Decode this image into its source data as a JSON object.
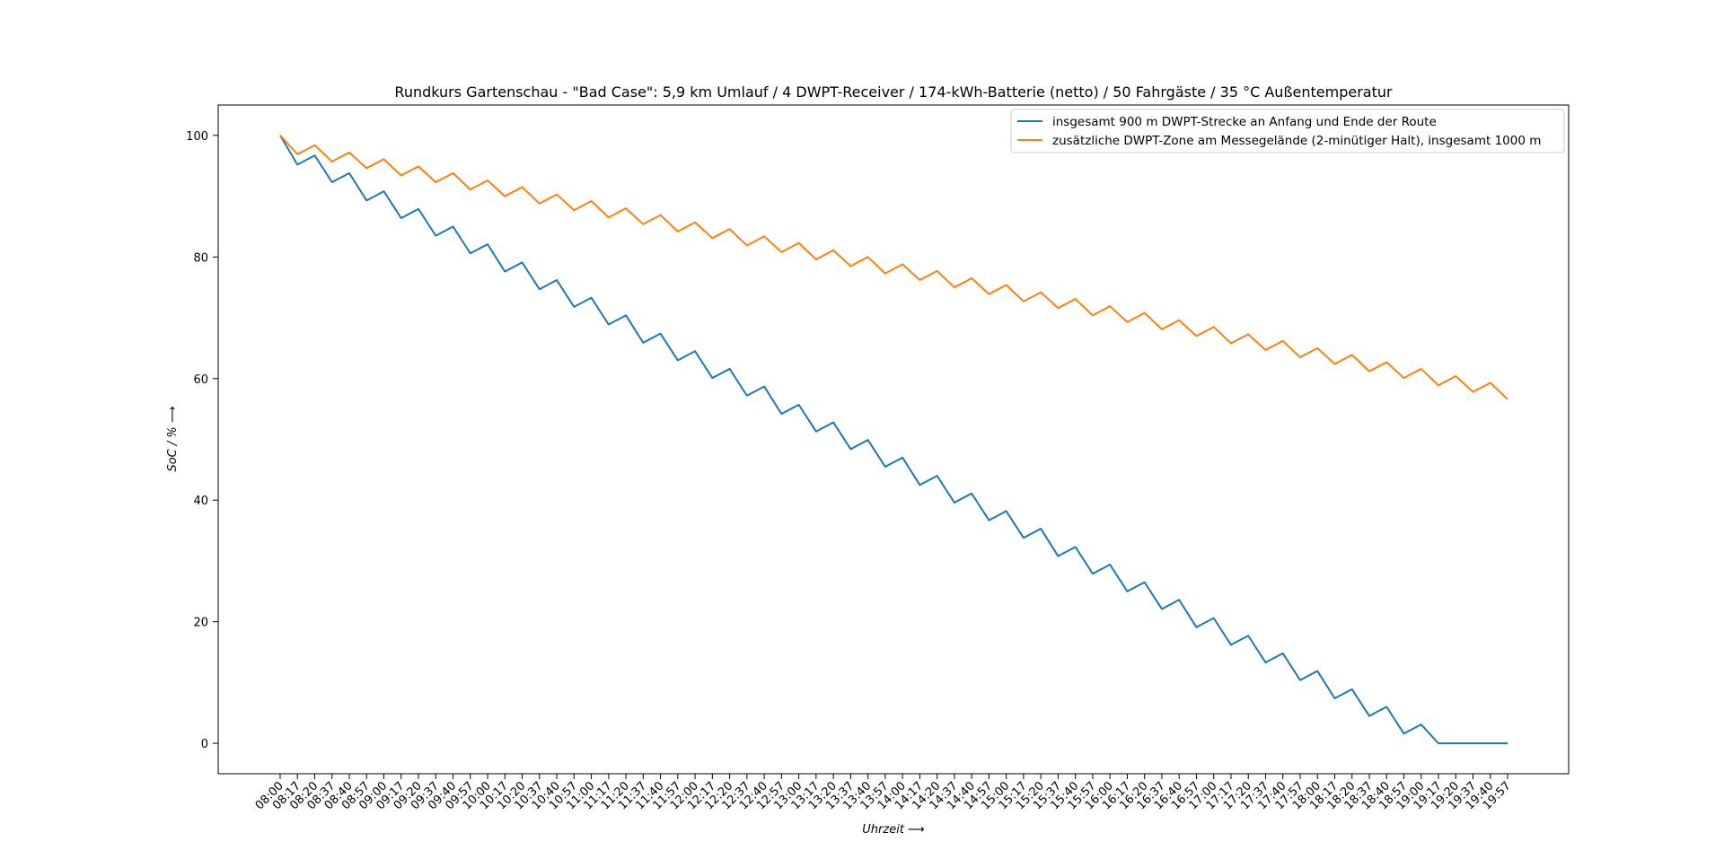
{
  "chart_data": {
    "type": "line",
    "title": "Rundkurs Gartenschau - \"Bad Case\": 5,9 km Umlauf / 4 DWPT-Receiver / 174-kWh-Batterie (netto) / 50 Fahrgäste / 35 °C Außentemperatur",
    "xlabel": "Uhrzeit ⟶",
    "ylabel": "SoC / % ⟶",
    "ylim": [
      -5,
      105
    ],
    "yticks": [
      0,
      20,
      40,
      60,
      80,
      100
    ],
    "grid": false,
    "legend_position": "top-right",
    "x": [
      "08:00",
      "08:17",
      "08:20",
      "08:37",
      "08:40",
      "08:57",
      "09:00",
      "09:17",
      "09:20",
      "09:37",
      "09:40",
      "09:57",
      "10:00",
      "10:17",
      "10:20",
      "10:37",
      "10:40",
      "10:57",
      "11:00",
      "11:17",
      "11:20",
      "11:37",
      "11:40",
      "11:57",
      "12:00",
      "12:17",
      "12:20",
      "12:37",
      "12:40",
      "12:57",
      "13:00",
      "13:17",
      "13:20",
      "13:37",
      "13:40",
      "13:57",
      "14:00",
      "14:17",
      "14:20",
      "14:37",
      "14:40",
      "14:57",
      "15:00",
      "15:17",
      "15:20",
      "15:37",
      "15:40",
      "15:57",
      "16:00",
      "16:17",
      "16:20",
      "16:37",
      "16:40",
      "16:57",
      "17:00",
      "17:17",
      "17:20",
      "17:37",
      "17:40",
      "17:57",
      "18:00",
      "18:17",
      "18:20",
      "18:37",
      "18:40",
      "18:57",
      "19:00",
      "19:17",
      "19:20",
      "19:37",
      "19:40",
      "19:57"
    ],
    "series": [
      {
        "name": "insgesamt 900 m DWPT-Strecke an Anfang und Ende der Route",
        "color": "#1f77b4",
        "values": [
          100.0,
          95.2,
          96.7,
          92.3,
          93.8,
          89.3,
          90.8,
          86.4,
          87.9,
          83.5,
          85.0,
          80.6,
          82.1,
          77.6,
          79.1,
          74.7,
          76.2,
          71.8,
          73.3,
          68.9,
          70.4,
          65.9,
          67.4,
          63.0,
          64.5,
          60.1,
          61.6,
          57.2,
          58.7,
          54.2,
          55.7,
          51.3,
          52.8,
          48.4,
          49.9,
          45.5,
          47.0,
          42.5,
          44.0,
          39.6,
          41.1,
          36.7,
          38.2,
          33.8,
          35.3,
          30.8,
          32.3,
          27.9,
          29.4,
          25.0,
          26.5,
          22.1,
          23.6,
          19.1,
          20.6,
          16.2,
          17.7,
          13.3,
          14.8,
          10.4,
          11.9,
          7.4,
          8.9,
          4.5,
          6.0,
          1.6,
          3.1,
          0,
          0,
          0,
          0,
          0
        ]
      },
      {
        "name": "zusätzliche DWPT-Zone am Messegelände (2-minütiger Halt), insgesamt 1000 m",
        "color": "#ff7f0e",
        "values": [
          100.0,
          96.9,
          98.4,
          95.7,
          97.2,
          94.6,
          96.1,
          93.4,
          94.9,
          92.3,
          93.8,
          91.1,
          92.6,
          90.0,
          91.5,
          88.8,
          90.3,
          87.7,
          89.2,
          86.5,
          88.0,
          85.4,
          86.9,
          84.2,
          85.7,
          83.1,
          84.6,
          81.9,
          83.4,
          80.8,
          82.3,
          79.6,
          81.1,
          78.5,
          80.0,
          77.3,
          78.8,
          76.2,
          77.7,
          75.0,
          76.5,
          73.9,
          75.4,
          72.7,
          74.2,
          71.6,
          73.1,
          70.4,
          71.9,
          69.3,
          70.8,
          68.1,
          69.6,
          67.0,
          68.5,
          65.8,
          67.3,
          64.7,
          66.2,
          63.5,
          65.0,
          62.4,
          63.9,
          61.2,
          62.7,
          60.1,
          61.6,
          58.9,
          60.4,
          57.8,
          59.3,
          56.6
        ]
      }
    ]
  }
}
